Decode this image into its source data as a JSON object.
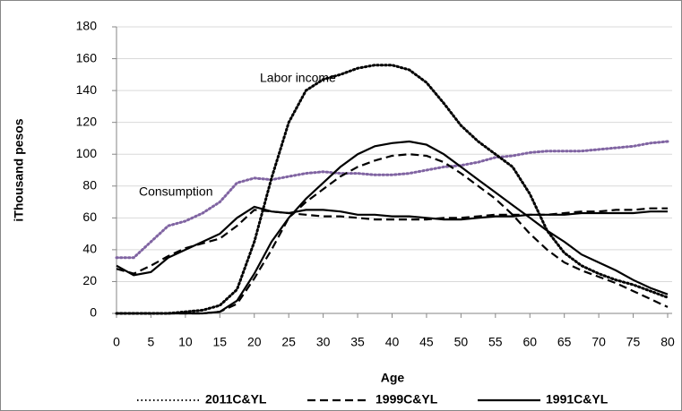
{
  "chart_data": {
    "type": "line",
    "x_label": "Age",
    "y_label": "iThousand pesos",
    "annotations": [
      "Labor income",
      "Consumption"
    ],
    "x": [
      0,
      2.5,
      5,
      7.5,
      10,
      12.5,
      15,
      17.5,
      20,
      22.5,
      25,
      27.5,
      30,
      32.5,
      35,
      37.5,
      40,
      42.5,
      45,
      47.5,
      50,
      52.5,
      55,
      57.5,
      60,
      62.5,
      65,
      67.5,
      70,
      72.5,
      75,
      77.5,
      80
    ],
    "series": [
      {
        "name": "2011C&YL",
        "color": "#000000",
        "consumption_color": "#8064a2",
        "dash": "dotted",
        "labor_income": [
          0,
          0,
          0,
          0,
          1,
          2,
          5,
          15,
          45,
          85,
          120,
          140,
          147,
          150,
          154,
          156,
          156,
          153,
          145,
          132,
          118,
          108,
          100,
          92,
          75,
          52,
          38,
          30,
          25,
          21,
          18,
          14,
          10
        ],
        "consumption": [
          35,
          35,
          45,
          55,
          58,
          63,
          70,
          82,
          85,
          84,
          86,
          88,
          89,
          88,
          88,
          87,
          87,
          88,
          90,
          92,
          93,
          95,
          98,
          99,
          101,
          102,
          102,
          102,
          103,
          104,
          105,
          107,
          108
        ]
      },
      {
        "name": "1999C&YL",
        "color": "#000000",
        "dash": "dashed",
        "labor_income": [
          0,
          0,
          0,
          0,
          0,
          0,
          1,
          6,
          22,
          40,
          60,
          70,
          78,
          86,
          92,
          96,
          99,
          100,
          99,
          95,
          88,
          80,
          72,
          62,
          50,
          40,
          32,
          27,
          23,
          19,
          14,
          9,
          4
        ],
        "consumption": [
          28,
          25,
          30,
          36,
          41,
          44,
          47,
          55,
          65,
          64,
          63,
          62,
          61,
          61,
          60,
          59,
          59,
          59,
          59,
          60,
          60,
          61,
          62,
          62,
          62,
          62,
          63,
          64,
          64,
          65,
          65,
          66,
          66
        ]
      },
      {
        "name": "1991C&YL",
        "color": "#000000",
        "dash": "solid",
        "labor_income": [
          0,
          0,
          0,
          0,
          0,
          0,
          1,
          8,
          25,
          45,
          60,
          72,
          82,
          92,
          100,
          105,
          107,
          108,
          106,
          100,
          92,
          84,
          76,
          68,
          60,
          52,
          45,
          37,
          32,
          27,
          21,
          16,
          12
        ],
        "consumption": [
          30,
          24,
          26,
          35,
          40,
          45,
          50,
          60,
          67,
          64,
          63,
          65,
          65,
          64,
          62,
          62,
          61,
          61,
          60,
          59,
          59,
          60,
          61,
          61,
          62,
          62,
          62,
          63,
          63,
          63,
          63,
          64,
          64
        ]
      }
    ],
    "xlim": [
      0,
      80
    ],
    "xticks": [
      0,
      5,
      10,
      15,
      20,
      25,
      30,
      35,
      40,
      45,
      50,
      55,
      60,
      65,
      70,
      75,
      80
    ],
    "ylim": [
      0,
      180
    ],
    "yticks": [
      0,
      20,
      40,
      60,
      80,
      100,
      120,
      140,
      160,
      180
    ],
    "grid": true,
    "legend": "bottom"
  }
}
